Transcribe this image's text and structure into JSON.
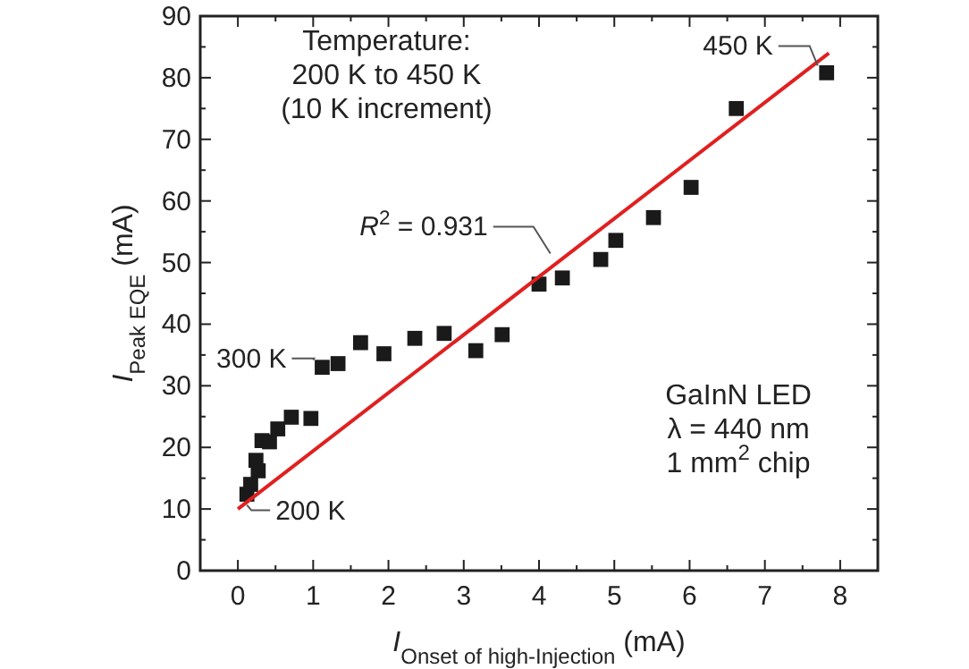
{
  "chart_data": {
    "type": "scatter",
    "xlabel": "I$_{Onset of high-Injection}$  (mA)",
    "ylabel": "I$_{Peak EQE}$  (mA)",
    "xlim": [
      -0.5,
      8.5
    ],
    "ylim": [
      0,
      90
    ],
    "xticks": [
      0,
      {
        "value": 0.5,
        "label": null
      },
      1,
      {
        "value": 1.5,
        "label": null
      },
      2,
      {
        "value": 2.5,
        "label": null
      },
      3,
      {
        "value": 3.5,
        "label": null
      },
      4,
      {
        "value": 4.5,
        "label": null
      },
      5,
      {
        "value": 5.5,
        "label": null
      },
      6,
      {
        "value": 6.5,
        "label": null
      },
      7,
      {
        "value": 7.5,
        "label": null
      },
      8
    ],
    "yticks": [
      0,
      {
        "value": 5,
        "label": null
      },
      10,
      {
        "value": 15,
        "label": null
      },
      20,
      {
        "value": 25,
        "label": null
      },
      30,
      {
        "value": 35,
        "label": null
      },
      40,
      {
        "value": 45,
        "label": null
      },
      50,
      {
        "value": 55,
        "label": null
      },
      60,
      {
        "value": 65,
        "label": null
      },
      70,
      {
        "value": 75,
        "label": null
      },
      80,
      {
        "value": 85,
        "label": null
      },
      90
    ],
    "grid": false,
    "series": [
      {
        "marker": "square",
        "color": "#1a1a1a",
        "x": [
          0.12,
          0.17,
          0.24,
          0.27,
          0.32,
          0.42,
          0.53,
          0.71,
          0.97,
          1.12,
          1.33,
          1.63,
          1.94,
          2.35,
          2.74,
          3.16,
          3.51,
          4.0,
          4.31,
          4.82,
          5.02,
          5.52,
          6.02,
          6.62,
          7.82
        ],
        "values": [
          12.4,
          14.0,
          17.9,
          16.2,
          21.1,
          20.9,
          23.0,
          24.9,
          24.7,
          33.0,
          33.6,
          37.0,
          35.2,
          37.7,
          38.5,
          35.7,
          38.3,
          46.5,
          47.5,
          50.5,
          53.6,
          57.3,
          62.2,
          75.0,
          80.8
        ]
      },
      {
        "type": "line",
        "color": "#e02020",
        "x": [
          0,
          7.85
        ],
        "values": [
          10,
          84
        ]
      }
    ],
    "annotations": [
      "Temperature:\n200 K to 450 K\n(10 K increment)",
      "GaInN LED\nλ = 440 nm\n1 mm$^{2}$ chip",
      {
        "text": "300 K",
        "x": 1.12,
        "y": 33.0
      },
      {
        "text": "200 K",
        "x": 0.12,
        "y": 12.4
      },
      {
        "text": "450 K",
        "x": 7.82,
        "y": 80.8
      },
      {
        "text": "R$^{2}$ = 0.931",
        "x": 4.27,
        "y": 50.3
      }
    ]
  }
}
